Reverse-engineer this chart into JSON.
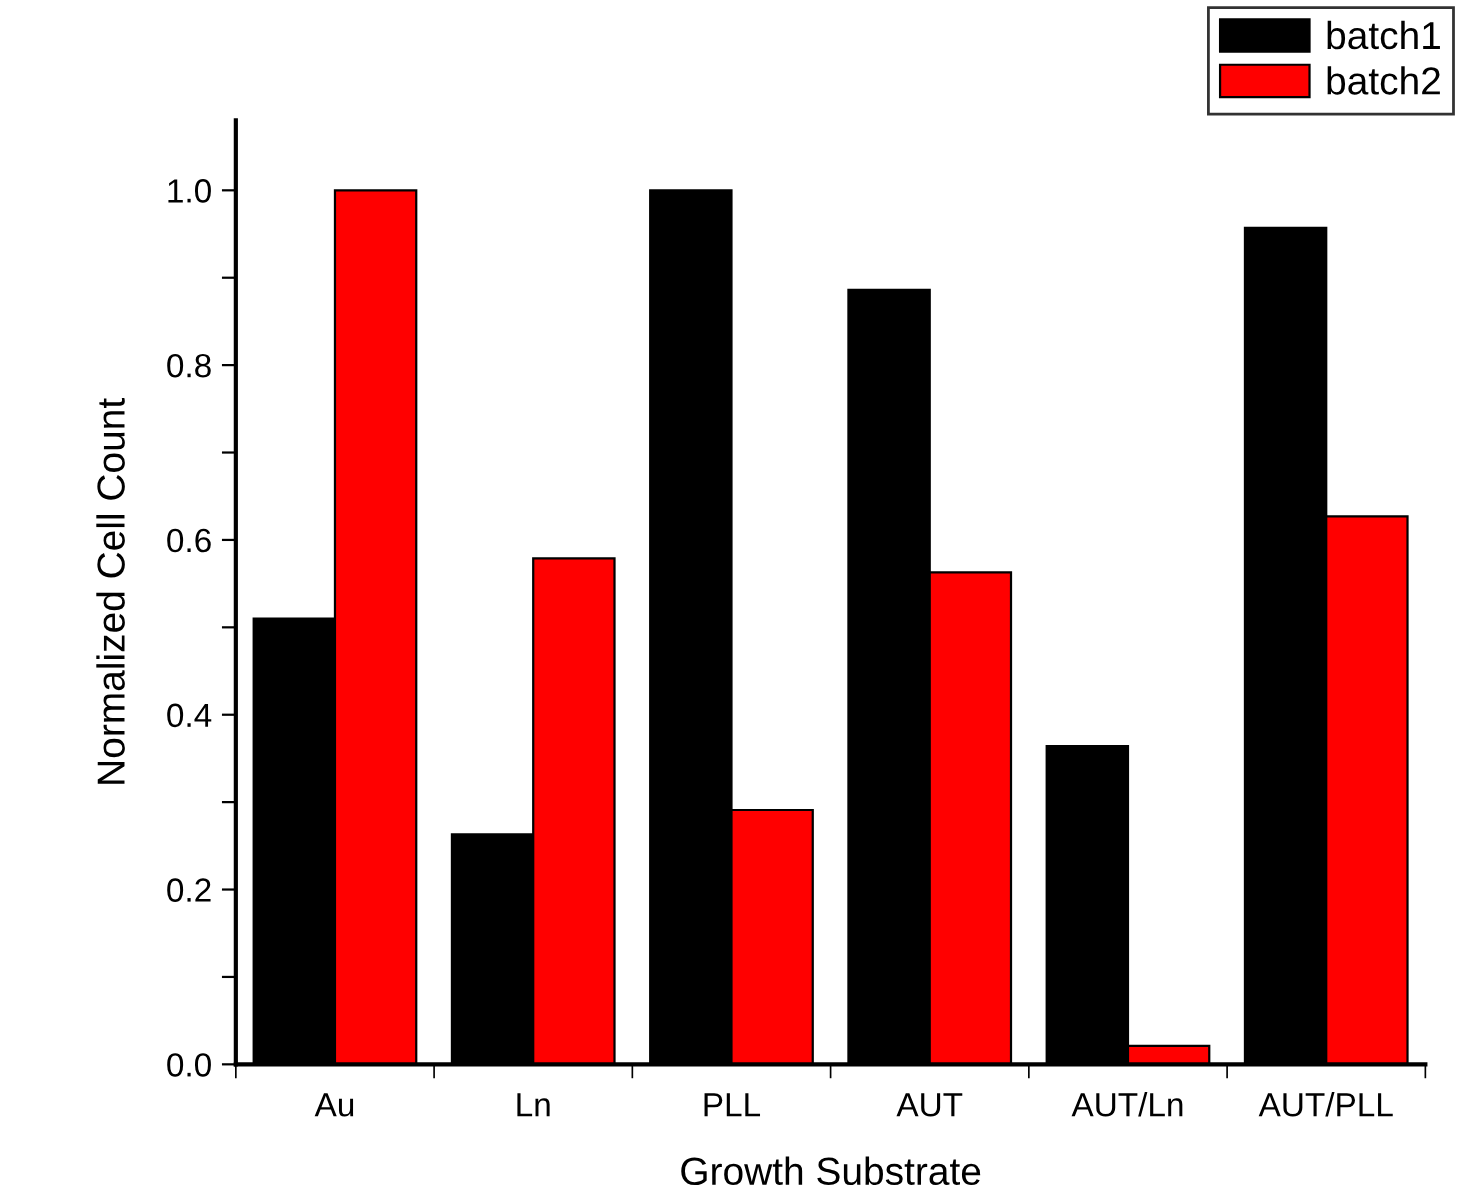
{
  "chart_data": {
    "type": "bar",
    "xlabel": "Growth Substrate",
    "ylabel": "Normalized Cell Count",
    "categories": [
      "Au",
      "Ln",
      "PLL",
      "AUT",
      "AUT/Ln",
      "AUT/PLL"
    ],
    "series": [
      {
        "name": "batch1",
        "color": "#000000",
        "values": [
          0.51,
          0.263,
          1.0,
          0.886,
          0.364,
          0.957
        ]
      },
      {
        "name": "batch2",
        "color": "#ff0000",
        "values": [
          1.0,
          0.579,
          0.291,
          0.563,
          0.021,
          0.627
        ]
      }
    ],
    "ylim": [
      0,
      1.08
    ],
    "yticks": [
      {
        "value": 0,
        "label": "0.0"
      },
      {
        "value": 0.1,
        "label": null
      },
      {
        "value": 0.2,
        "label": "0.2"
      },
      {
        "value": 0.3,
        "label": null
      },
      {
        "value": 0.4,
        "label": "0.4"
      },
      {
        "value": 0.5,
        "label": null
      },
      {
        "value": 0.6,
        "label": "0.6"
      },
      {
        "value": 0.7,
        "label": null
      },
      {
        "value": 0.8,
        "label": "0.8"
      },
      {
        "value": 0.9,
        "label": null
      },
      {
        "value": 1.0,
        "label": "1.0"
      }
    ],
    "grid": false,
    "legend": "top right"
  }
}
